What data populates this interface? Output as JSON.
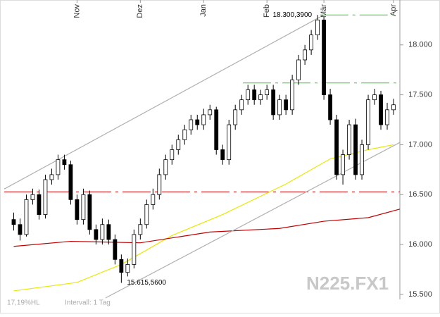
{
  "chart_data": {
    "type": "candlestick",
    "x": [
      0,
      1,
      2,
      3,
      4,
      5,
      6,
      7,
      8,
      9,
      10,
      11,
      12,
      13,
      14,
      15,
      16,
      17,
      18,
      19,
      20,
      21,
      22,
      23,
      24,
      25,
      26,
      27,
      28,
      29,
      30,
      31,
      32,
      33,
      34,
      35,
      36,
      37,
      38,
      39,
      40,
      41,
      42,
      43,
      44,
      45,
      46,
      47,
      48,
      49,
      50,
      51,
      52,
      53,
      54,
      55,
      56,
      57,
      58,
      59,
      60
    ],
    "open": [
      16250,
      16200,
      16100,
      16450,
      16500,
      16300,
      16650,
      16700,
      16850,
      16800,
      16450,
      16250,
      16500,
      16150,
      16050,
      16200,
      16050,
      15850,
      15720,
      15800,
      16100,
      16200,
      16400,
      16500,
      16700,
      16850,
      16950,
      17050,
      17150,
      17250,
      17200,
      17300,
      17350,
      16950,
      16850,
      17200,
      17350,
      17450,
      17550,
      17450,
      17500,
      17550,
      17300,
      17450,
      17350,
      17650,
      17850,
      17950,
      18100,
      18250,
      17500,
      17250,
      16700,
      16900,
      17200,
      16700,
      17000,
      17450,
      17500,
      17200,
      17350
    ],
    "high": [
      16320,
      16260,
      16500,
      16560,
      16550,
      16700,
      16760,
      16900,
      16900,
      16840,
      16500,
      16560,
      16540,
      16200,
      16260,
      16250,
      16100,
      15900,
      15860,
      16150,
      16260,
      16450,
      16560,
      16760,
      16900,
      17000,
      17100,
      17200,
      17300,
      17300,
      17360,
      17400,
      17380,
      17000,
      17250,
      17400,
      17500,
      17600,
      17600,
      17550,
      17600,
      17600,
      17500,
      17500,
      17700,
      17900,
      18000,
      18150,
      18300.39,
      18280,
      17560,
      17300,
      16950,
      17250,
      17260,
      17050,
      17500,
      17560,
      17540,
      17420,
      17460
    ],
    "low": [
      16140,
      16040,
      16080,
      16400,
      16250,
      16260,
      16600,
      16650,
      16750,
      16400,
      16200,
      16200,
      16100,
      16000,
      16000,
      16000,
      15800,
      15615.56,
      15680,
      15760,
      16050,
      16160,
      16350,
      16450,
      16650,
      16800,
      16900,
      17000,
      17100,
      17150,
      17150,
      17250,
      16900,
      16800,
      16800,
      17150,
      17300,
      17400,
      17400,
      17400,
      17450,
      17250,
      17250,
      17300,
      17300,
      17600,
      17800,
      17900,
      18050,
      17450,
      17200,
      16650,
      16600,
      16850,
      16650,
      16650,
      16950,
      17400,
      17150,
      17150,
      17300
    ],
    "close": [
      16200,
      16100,
      16450,
      16500,
      16300,
      16650,
      16700,
      16850,
      16800,
      16450,
      16250,
      16500,
      16150,
      16050,
      16200,
      16050,
      15850,
      15720,
      15800,
      16100,
      16200,
      16400,
      16500,
      16700,
      16850,
      16950,
      17050,
      17150,
      17250,
      17200,
      17300,
      17350,
      16950,
      16850,
      17200,
      17350,
      17450,
      17550,
      17450,
      17500,
      17550,
      17300,
      17450,
      17350,
      17650,
      17850,
      17950,
      18100,
      18250,
      17500,
      17250,
      16700,
      16900,
      17200,
      16700,
      17000,
      17450,
      17500,
      17200,
      17350,
      17400
    ],
    "up_color": "#ffffff",
    "down_color": "#000000",
    "xlim": [
      -1.5,
      61
    ],
    "xticks": [
      {
        "value": 10,
        "label": "Nov"
      },
      {
        "value": 20,
        "label": "Dez"
      },
      {
        "value": 30,
        "label": "Jan"
      },
      {
        "value": 40,
        "label": "Feb"
      },
      {
        "value": 49,
        "label": "Mär"
      },
      {
        "value": 60,
        "label": "Apr"
      }
    ],
    "ylim": [
      15450,
      18450
    ],
    "yticks": [
      {
        "value": 15500,
        "label": "15.500"
      },
      {
        "value": 16000,
        "label": "16.000"
      },
      {
        "value": 16500,
        "label": "16.500"
      },
      {
        "value": 17000,
        "label": "17.000"
      },
      {
        "value": 17500,
        "label": "17.500"
      },
      {
        "value": 18000,
        "label": "18.000"
      }
    ],
    "lines": [
      {
        "color": "#e8e800",
        "x": [
          0,
          10,
          17,
          25,
          33,
          43,
          50,
          56,
          60
        ],
        "values": [
          15535,
          15620,
          15800,
          16090,
          16300,
          16606,
          16858,
          16950,
          17000
        ]
      },
      {
        "color": "#c00000",
        "x": [
          0,
          9,
          20,
          31,
          42,
          49,
          56,
          61
        ],
        "values": [
          15981,
          16032,
          16017,
          16125,
          16161,
          16233,
          16269,
          16355
        ]
      },
      {
        "color": "#b0b0b0",
        "x": [
          -1.5,
          48.4
        ],
        "values": [
          16556,
          18280
        ]
      },
      {
        "color": "#b0b0b0",
        "x": [
          14.5,
          61
        ],
        "values": [
          15464,
          17023
        ]
      }
    ],
    "levels": [
      {
        "color": "#c00000",
        "value": 16527,
        "x": [
          -1.5,
          61
        ]
      },
      {
        "color": "#33cc33",
        "value": 17619,
        "x": [
          36.2,
          61
        ]
      },
      {
        "color": "#33cc33",
        "value": 18300.39,
        "x": [
          48.4,
          60
        ]
      }
    ],
    "annotations": [
      {
        "text": "18.300,3900",
        "x": 48,
        "value": 18300.39
      },
      {
        "text": "15.615,5600",
        "x": 17,
        "value": 15615.56
      }
    ],
    "watermark": "N225.FX1",
    "footer": [
      "17,19%HL",
      "Intervall: 1 Tag"
    ]
  }
}
